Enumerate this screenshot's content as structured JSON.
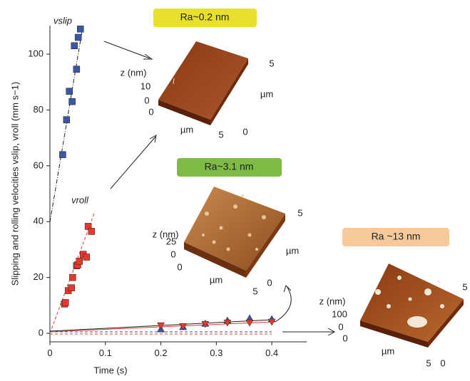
{
  "chart_data": {
    "type": "scatter",
    "x_label": "Time (s)",
    "y_label": "Slipping and rolling velocities vslip, vroll (mm s−1)",
    "xlim": [
      0,
      0.45
    ],
    "ylim": [
      -3,
      110
    ],
    "xticks": [
      0,
      0.1,
      0.2,
      0.3,
      0.4
    ],
    "yticks": [
      0,
      20,
      40,
      60,
      80,
      100
    ],
    "series": [
      {
        "name": "vslip",
        "color": "#3a56a5",
        "marker": "square",
        "x": [
          0.023,
          0.03,
          0.035,
          0.04,
          0.044,
          0.048,
          0.051,
          0.055
        ],
        "values": [
          64,
          76.5,
          86.7,
          83,
          103,
          94.6,
          106,
          109
        ]
      },
      {
        "name": "vroll",
        "color": "#e8382b",
        "marker": "square",
        "x": [
          0.026,
          0.028,
          0.033,
          0.039,
          0.041,
          0.048,
          0.05,
          0.053,
          0.06,
          0.066,
          0.069,
          0.075
        ],
        "values": [
          10.5,
          11,
          15.3,
          16.3,
          20,
          24.2,
          24.5,
          25.8,
          28.3,
          27.3,
          38.3,
          36.5
        ]
      },
      {
        "color": "#3a56a5",
        "marker": "triangle-up",
        "x": [
          0.2,
          0.24,
          0.28,
          0.32,
          0.36,
          0.4
        ],
        "values": [
          1.5,
          2.3,
          3.5,
          4.6,
          5.4,
          5.1
        ]
      },
      {
        "color": "#e8382b",
        "marker": "triangle-down",
        "x": [
          0.2,
          0.24,
          0.28,
          0.32,
          0.36,
          0.4
        ],
        "values": [
          2.8,
          2.5,
          3.3,
          3.8,
          3.8,
          4.1
        ]
      }
    ]
  },
  "insets": [
    {
      "label": "Ra~0.2 nm",
      "z_label": "z (nm)",
      "z_ticks": [
        "10",
        "0"
      ],
      "front_ticks": [
        "0",
        "5"
      ],
      "front_label": "µm",
      "side_ticks": [
        "0",
        "5"
      ],
      "side_label": "µm"
    },
    {
      "label": "Ra~3.1 nm",
      "z_label": "z (nm)",
      "z_ticks": [
        "25",
        "0"
      ],
      "front_ticks": [
        "0",
        "5"
      ],
      "front_label": "µm",
      "side_ticks": [
        "0",
        "5"
      ],
      "side_label": "µm"
    },
    {
      "label": "Ra ~13 nm",
      "z_label": "z (nm)",
      "z_ticks": [
        "100",
        "0"
      ],
      "front_ticks": [
        "0",
        "5"
      ],
      "front_label": "µm",
      "side_ticks": [
        "0",
        "5"
      ]
    }
  ]
}
